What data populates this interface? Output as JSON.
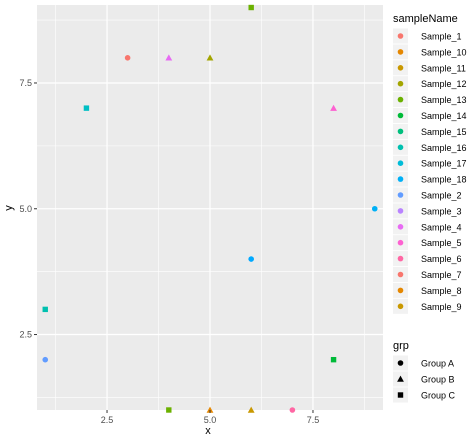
{
  "chart_data": {
    "type": "scatter",
    "xlabel": "x",
    "ylabel": "y",
    "xlim": [
      0.8,
      9.2
    ],
    "ylim": [
      1.0,
      9.05
    ],
    "x_ticks": [
      2.5,
      5.0,
      7.5
    ],
    "x_tick_labels": [
      "2.5",
      "5.0",
      "7.5"
    ],
    "y_ticks": [
      2.5,
      5.0,
      7.5
    ],
    "y_tick_labels": [
      "2.5",
      "5.0",
      "7.5"
    ],
    "grid": true,
    "legend_position": "right",
    "color_legend": {
      "title": "sampleName",
      "entries": [
        {
          "label": "Sample_1",
          "color": "#F8766D"
        },
        {
          "label": "Sample_10",
          "color": "#E58700"
        },
        {
          "label": "Sample_11",
          "color": "#C99800"
        },
        {
          "label": "Sample_12",
          "color": "#A3A500"
        },
        {
          "label": "Sample_13",
          "color": "#6BB100"
        },
        {
          "label": "Sample_14",
          "color": "#00BA38"
        },
        {
          "label": "Sample_15",
          "color": "#00BF7D"
        },
        {
          "label": "Sample_16",
          "color": "#00C0AF"
        },
        {
          "label": "Sample_17",
          "color": "#00BCD8"
        },
        {
          "label": "Sample_18",
          "color": "#00B0F6"
        },
        {
          "label": "Sample_2",
          "color": "#619CFF"
        },
        {
          "label": "Sample_3",
          "color": "#B983FF"
        },
        {
          "label": "Sample_4",
          "color": "#E76BF3"
        },
        {
          "label": "Sample_5",
          "color": "#FD61D1"
        },
        {
          "label": "Sample_6",
          "color": "#FF67A4"
        },
        {
          "label": "Sample_7",
          "color": "#F8766D"
        },
        {
          "label": "Sample_8",
          "color": "#E58700"
        },
        {
          "label": "Sample_9",
          "color": "#C99800"
        }
      ]
    },
    "shape_legend": {
      "title": "grp",
      "entries": [
        {
          "label": "Group A",
          "shape": "circle"
        },
        {
          "label": "Group B",
          "shape": "triangle"
        },
        {
          "label": "Group C",
          "shape": "square"
        }
      ]
    },
    "points": [
      {
        "x": 3,
        "y": 8,
        "shape": "circle",
        "color": "#F8766D"
      },
      {
        "x": 4,
        "y": 8,
        "shape": "triangle",
        "color": "#E76BF3"
      },
      {
        "x": 5,
        "y": 8,
        "shape": "triangle",
        "color": "#A3A500"
      },
      {
        "x": 6,
        "y": 9,
        "shape": "square",
        "color": "#6BB100"
      },
      {
        "x": 2,
        "y": 7,
        "shape": "square",
        "color": "#00BFC4"
      },
      {
        "x": 8,
        "y": 7,
        "shape": "triangle",
        "color": "#FD61D1"
      },
      {
        "x": 9,
        "y": 5,
        "shape": "circle",
        "color": "#00B0F6"
      },
      {
        "x": 6,
        "y": 4,
        "shape": "circle",
        "color": "#00A9FF"
      },
      {
        "x": 1,
        "y": 3,
        "shape": "square",
        "color": "#00C0AF"
      },
      {
        "x": 1,
        "y": 2,
        "shape": "circle",
        "color": "#619CFF"
      },
      {
        "x": 8,
        "y": 2,
        "shape": "square",
        "color": "#00BA38"
      },
      {
        "x": 4,
        "y": 1,
        "shape": "square",
        "color": "#6BB100"
      },
      {
        "x": 5,
        "y": 1,
        "shape": "triangle",
        "color": "#E58700"
      },
      {
        "x": 6,
        "y": 1,
        "shape": "triangle",
        "color": "#C99800"
      },
      {
        "x": 7,
        "y": 1,
        "shape": "circle",
        "color": "#FF67A4"
      }
    ]
  }
}
